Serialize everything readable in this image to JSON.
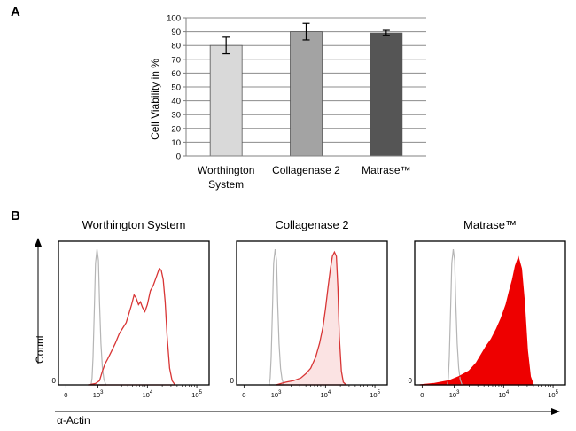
{
  "panels": {
    "a": "A",
    "b": "B"
  },
  "chart_data": [
    {
      "type": "bar",
      "title": "",
      "xlabel": "",
      "ylabel": "Cell Viability in %",
      "ylim": [
        0,
        100
      ],
      "yticks": [
        0,
        10,
        20,
        30,
        40,
        50,
        60,
        70,
        80,
        90,
        100
      ],
      "grid": true,
      "categories": [
        {
          "line1": "Worthington",
          "line2": "System"
        },
        {
          "line1": "Collagenase 2",
          "line2": ""
        },
        {
          "line1": "Matrase™",
          "line2": ""
        }
      ],
      "values": [
        80,
        90,
        89
      ],
      "errors": [
        6,
        6,
        2
      ],
      "colors": [
        "#d9d9d9",
        "#a3a3a3",
        "#555555"
      ]
    },
    {
      "type": "area",
      "panel": "B",
      "shared_xlabel": "α-Actin",
      "shared_ylabel": "Count",
      "x_scale": "log",
      "xticks": [
        {
          "base": "0",
          "exp": ""
        },
        {
          "base": "10",
          "exp": "3"
        },
        {
          "base": "10",
          "exp": "4"
        },
        {
          "base": "10",
          "exp": "5"
        }
      ],
      "y_zero_label": "0",
      "histograms": [
        {
          "title": "Worthington System",
          "control": {
            "color": "#b5b5b5",
            "points": [
              [
                2.86,
                0
              ],
              [
                2.88,
                0.05
              ],
              [
                2.9,
                0.2
              ],
              [
                2.93,
                0.6
              ],
              [
                2.95,
                0.88
              ],
              [
                2.98,
                0.98
              ],
              [
                3.01,
                0.9
              ],
              [
                3.03,
                0.6
              ],
              [
                3.06,
                0.3
              ],
              [
                3.09,
                0.12
              ],
              [
                3.12,
                0.04
              ],
              [
                3.16,
                0
              ]
            ]
          },
          "sample": {
            "line": "#d83535",
            "fill": "none",
            "points": [
              [
                2.8,
                0
              ],
              [
                2.95,
                0.01
              ],
              [
                3.03,
                0.03
              ],
              [
                3.09,
                0.1
              ],
              [
                3.14,
                0.15
              ],
              [
                3.2,
                0.19
              ],
              [
                3.27,
                0.24
              ],
              [
                3.35,
                0.3
              ],
              [
                3.43,
                0.37
              ],
              [
                3.5,
                0.41
              ],
              [
                3.57,
                0.45
              ],
              [
                3.63,
                0.52
              ],
              [
                3.68,
                0.58
              ],
              [
                3.73,
                0.65
              ],
              [
                3.77,
                0.63
              ],
              [
                3.82,
                0.58
              ],
              [
                3.86,
                0.6
              ],
              [
                3.9,
                0.56
              ],
              [
                3.95,
                0.53
              ],
              [
                4.0,
                0.58
              ],
              [
                4.06,
                0.68
              ],
              [
                4.12,
                0.72
              ],
              [
                4.18,
                0.78
              ],
              [
                4.24,
                0.84
              ],
              [
                4.28,
                0.83
              ],
              [
                4.32,
                0.76
              ],
              [
                4.36,
                0.6
              ],
              [
                4.4,
                0.35
              ],
              [
                4.45,
                0.12
              ],
              [
                4.5,
                0.03
              ],
              [
                4.56,
                0
              ]
            ]
          }
        },
        {
          "title": "Collagenase 2",
          "control": {
            "color": "#b5b5b5",
            "points": [
              [
                2.86,
                0
              ],
              [
                2.88,
                0.05
              ],
              [
                2.9,
                0.2
              ],
              [
                2.93,
                0.6
              ],
              [
                2.95,
                0.88
              ],
              [
                2.98,
                0.98
              ],
              [
                3.01,
                0.9
              ],
              [
                3.03,
                0.6
              ],
              [
                3.06,
                0.3
              ],
              [
                3.09,
                0.12
              ],
              [
                3.12,
                0.04
              ],
              [
                3.16,
                0
              ]
            ]
          },
          "sample": {
            "line": "#d83535",
            "fill": "#fbe3e3",
            "points": [
              [
                3.0,
                0
              ],
              [
                3.1,
                0.01
              ],
              [
                3.2,
                0.02
              ],
              [
                3.35,
                0.03
              ],
              [
                3.5,
                0.05
              ],
              [
                3.6,
                0.08
              ],
              [
                3.7,
                0.12
              ],
              [
                3.8,
                0.2
              ],
              [
                3.88,
                0.3
              ],
              [
                3.95,
                0.42
              ],
              [
                4.0,
                0.55
              ],
              [
                4.05,
                0.7
              ],
              [
                4.1,
                0.84
              ],
              [
                4.14,
                0.93
              ],
              [
                4.18,
                0.96
              ],
              [
                4.22,
                0.93
              ],
              [
                4.25,
                0.7
              ],
              [
                4.28,
                0.35
              ],
              [
                4.32,
                0.1
              ],
              [
                4.36,
                0.02
              ],
              [
                4.42,
                0
              ]
            ]
          }
        },
        {
          "title": "Matrase™",
          "control": {
            "color": "#b5b5b5",
            "points": [
              [
                2.86,
                0
              ],
              [
                2.88,
                0.05
              ],
              [
                2.9,
                0.2
              ],
              [
                2.93,
                0.6
              ],
              [
                2.95,
                0.88
              ],
              [
                2.98,
                0.98
              ],
              [
                3.01,
                0.9
              ],
              [
                3.03,
                0.6
              ],
              [
                3.06,
                0.3
              ],
              [
                3.09,
                0.12
              ],
              [
                3.12,
                0.04
              ],
              [
                3.16,
                0
              ]
            ]
          },
          "sample": {
            "line": "#ee0000",
            "fill": "#ee0000",
            "points": [
              [
                2.3,
                0
              ],
              [
                2.6,
                0.01
              ],
              [
                2.9,
                0.03
              ],
              [
                3.1,
                0.06
              ],
              [
                3.3,
                0.1
              ],
              [
                3.45,
                0.16
              ],
              [
                3.55,
                0.22
              ],
              [
                3.65,
                0.28
              ],
              [
                3.75,
                0.33
              ],
              [
                3.85,
                0.4
              ],
              [
                3.95,
                0.48
              ],
              [
                4.05,
                0.58
              ],
              [
                4.12,
                0.68
              ],
              [
                4.18,
                0.76
              ],
              [
                4.24,
                0.86
              ],
              [
                4.3,
                0.92
              ],
              [
                4.36,
                0.84
              ],
              [
                4.42,
                0.6
              ],
              [
                4.48,
                0.25
              ],
              [
                4.54,
                0.06
              ],
              [
                4.6,
                0
              ]
            ]
          }
        }
      ]
    }
  ]
}
